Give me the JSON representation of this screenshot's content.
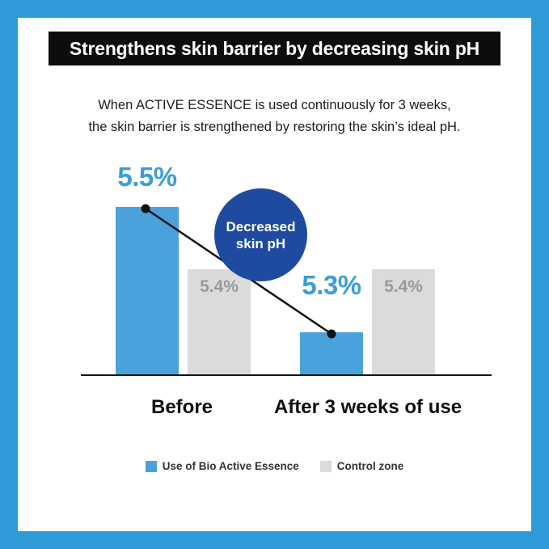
{
  "banner": {
    "title": "Strengthens skin barrier by decreasing skin pH"
  },
  "subtitle": {
    "line1": "When ACTIVE ESSENCE is used continuously for 3 weeks,",
    "line2": "the skin barrier is strengthened by restoring the skin’s ideal pH."
  },
  "badge": {
    "line1": "Decreased",
    "line2": "skin pH"
  },
  "chart_data": {
    "type": "bar",
    "title": "Strengthens skin barrier by decreasing skin pH",
    "categories": [
      "Before",
      "After 3 weeks of use"
    ],
    "series": [
      {
        "name": "Use of Bio Active Essence",
        "values": [
          5.5,
          5.3
        ],
        "labels": [
          "5.5%",
          "5.3%"
        ],
        "color": "#49A2DB"
      },
      {
        "name": "Control zone",
        "values": [
          5.4,
          5.4
        ],
        "labels": [
          "5.4%",
          "5.4%"
        ],
        "color": "#DBDBDB"
      }
    ],
    "annotation": "Decreased skin pH",
    "xlabel": "",
    "ylabel": "",
    "ylim": [
      5.2,
      5.6
    ],
    "grid": false,
    "legend_position": "bottom"
  },
  "legend": {
    "items": [
      {
        "label": "Use of Bio Active Essence",
        "color": "#49A2DB"
      },
      {
        "label": "Control zone",
        "color": "#DBDBDB"
      }
    ]
  },
  "colors": {
    "frame": "#2D9BD8",
    "banner_bg": "#0D0D0D",
    "bar_blue": "#49A2DB",
    "bar_gray": "#DBDBDB",
    "value_blue": "#3D9CD9",
    "value_gray": "#999999",
    "badge_bg": "#1E4B9F"
  }
}
